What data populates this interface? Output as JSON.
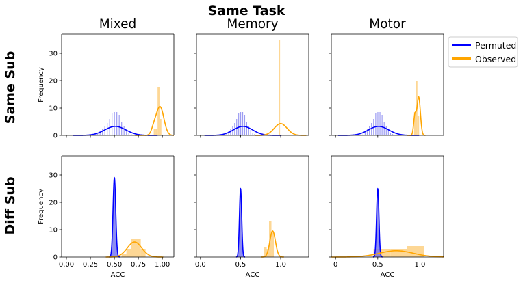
{
  "figure": {
    "suptitle": "Same Task",
    "row_labels": [
      "Same Sub",
      "Diff Sub"
    ],
    "col_titles": [
      "Mixed",
      "Memory",
      "Motor"
    ]
  },
  "legend": {
    "placement": "right, outside top",
    "items": [
      {
        "label": "Permuted",
        "color": "#0000ff"
      },
      {
        "label": "Observed",
        "color": "#ffa500"
      }
    ]
  },
  "colors": {
    "permuted": "#0000ff",
    "permuted_hist": "#8b8bf0",
    "observed": "#ffa500",
    "observed_hist": "#fdd38a"
  },
  "chart_data": [
    {
      "type": "histogram",
      "row": "Same Sub",
      "col": "Mixed",
      "title": "Mixed",
      "ylabel": "Frequency",
      "xlabel": "",
      "ylim": [
        0,
        37
      ],
      "yticks": [
        0,
        10,
        20,
        30
      ],
      "xlim": [
        -0.05,
        1.12
      ],
      "xticks": [
        0.0,
        0.25,
        0.5,
        0.75,
        1.0
      ],
      "xtick_labels": [],
      "ytick_labels": [
        "0",
        "10",
        "20",
        "30"
      ],
      "series": [
        {
          "name": "Permuted",
          "bins": [
            0.3,
            0.325,
            0.35,
            0.375,
            0.4,
            0.425,
            0.45,
            0.475,
            0.5,
            0.525,
            0.55,
            0.575,
            0.6,
            0.625,
            0.65,
            0.675,
            0.7
          ],
          "values": [
            0.3,
            0.5,
            1.5,
            2.5,
            3.5,
            4.5,
            6,
            8,
            8.5,
            8.5,
            7.5,
            5,
            3.5,
            2,
            1,
            0.5,
            0.2
          ],
          "kde": {
            "mean": 0.51,
            "sd": 0.11,
            "peak": 3.3
          }
        },
        {
          "name": "Observed",
          "bins": [
            0.88,
            0.9,
            0.92,
            0.94,
            0.96,
            0.98,
            1.0
          ],
          "values": [
            0,
            0,
            2.5,
            2.5,
            17.5,
            6,
            0
          ],
          "kde": {
            "mean": 0.975,
            "sd": 0.04,
            "peak": 10.5,
            "shoulder": {
              "mean": 0.91,
              "sd": 0.025,
              "peak": 2
            }
          }
        }
      ]
    },
    {
      "type": "histogram",
      "row": "Same Sub",
      "col": "Memory",
      "title": "Memory",
      "ylabel": "",
      "xlabel": "",
      "ylim": [
        0,
        37
      ],
      "yticks": [
        0,
        10,
        20,
        30
      ],
      "xlim": [
        -0.05,
        1.35
      ],
      "xticks": [
        0.0,
        0.5,
        1.0
      ],
      "xtick_labels": [],
      "ytick_labels": [],
      "series": [
        {
          "name": "Permuted",
          "bins": [
            0.3,
            0.325,
            0.35,
            0.375,
            0.4,
            0.425,
            0.45,
            0.475,
            0.5,
            0.525,
            0.55,
            0.575,
            0.6,
            0.625,
            0.65,
            0.675,
            0.7
          ],
          "values": [
            0.3,
            0.5,
            1.5,
            2.5,
            3.5,
            4.5,
            6,
            8,
            8.5,
            8.5,
            7.5,
            5,
            3.5,
            2,
            1,
            0.5,
            0.2
          ],
          "kde": {
            "mean": 0.53,
            "sd": 0.12,
            "peak": 3.3
          }
        },
        {
          "name": "Observed",
          "bins": [
            0.985
          ],
          "values": [
            35
          ],
          "kde": {
            "mean": 1.0,
            "sd": 0.08,
            "peak": 4.3
          }
        }
      ]
    },
    {
      "type": "histogram",
      "row": "Same Sub",
      "col": "Motor",
      "title": "Motor",
      "ylabel": "",
      "xlabel": "",
      "ylim": [
        0,
        37
      ],
      "yticks": [
        0,
        10,
        20,
        30
      ],
      "xlim": [
        -0.05,
        1.28
      ],
      "xticks": [
        0.0,
        0.5,
        1.0
      ],
      "xtick_labels": [],
      "ytick_labels": [],
      "series": [
        {
          "name": "Permuted",
          "bins": [
            0.3,
            0.325,
            0.35,
            0.375,
            0.4,
            0.425,
            0.45,
            0.475,
            0.5,
            0.525,
            0.55,
            0.575,
            0.6,
            0.625,
            0.65,
            0.675,
            0.7
          ],
          "values": [
            0.3,
            0.5,
            1.5,
            2.5,
            3.5,
            4.5,
            6,
            8,
            8.5,
            8.5,
            7.5,
            5,
            3.5,
            2,
            1,
            0.5,
            0.2
          ],
          "kde": {
            "mean": 0.51,
            "sd": 0.12,
            "peak": 3.3
          }
        },
        {
          "name": "Observed",
          "bins": [
            0.92,
            0.94,
            0.96,
            0.98,
            1.0
          ],
          "values": [
            0,
            8.5,
            20,
            7,
            0
          ],
          "kde": {
            "mean": 0.985,
            "sd": 0.02,
            "peak": 14,
            "shoulder": {
              "mean": 0.94,
              "sd": 0.015,
              "peak": 7
            }
          }
        }
      ]
    },
    {
      "type": "histogram",
      "row": "Diff Sub",
      "col": "Mixed",
      "title": "",
      "ylabel": "Frequency",
      "xlabel": "ACC",
      "ylim": [
        0,
        37
      ],
      "yticks": [
        0,
        10,
        20,
        30
      ],
      "xlim": [
        -0.05,
        1.12
      ],
      "xticks": [
        0.0,
        0.25,
        0.5,
        0.75,
        1.0
      ],
      "xtick_labels": [
        "0.00",
        "0.25",
        "0.50",
        "0.75",
        "1.00"
      ],
      "ytick_labels": [
        "0",
        "10",
        "20",
        "30"
      ],
      "series": [
        {
          "name": "Permuted",
          "filled": true,
          "kde": {
            "mean": 0.5,
            "sd": 0.014,
            "peak": 29
          }
        },
        {
          "name": "Observed",
          "bins": [
            0.55,
            0.6,
            0.65,
            0.7,
            0.75,
            0.8,
            0.85
          ],
          "values": [
            0,
            1,
            3,
            6.5,
            6.5,
            3,
            0
          ],
          "kde": {
            "mean": 0.71,
            "sd": 0.075,
            "peak": 5.5
          }
        }
      ]
    },
    {
      "type": "histogram",
      "row": "Diff Sub",
      "col": "Memory",
      "title": "",
      "ylabel": "",
      "xlabel": "ACC",
      "ylim": [
        0,
        37
      ],
      "yticks": [
        0,
        10,
        20,
        30
      ],
      "xlim": [
        -0.05,
        1.35
      ],
      "xticks": [
        0.0,
        0.5,
        1.0
      ],
      "xtick_labels": [
        "0.0",
        "0.5",
        "1.0"
      ],
      "ytick_labels": [],
      "series": [
        {
          "name": "Permuted",
          "filled": true,
          "kde": {
            "mean": 0.5,
            "sd": 0.014,
            "peak": 25
          }
        },
        {
          "name": "Observed",
          "bins": [
            0.78,
            0.81,
            0.84,
            0.87,
            0.9,
            0.93
          ],
          "values": [
            0,
            3.5,
            3,
            13,
            9,
            0
          ],
          "kde": {
            "mean": 0.9,
            "sd": 0.035,
            "peak": 9.5
          }
        }
      ]
    },
    {
      "type": "histogram",
      "row": "Diff Sub",
      "col": "Motor",
      "title": "",
      "ylabel": "",
      "xlabel": "ACC",
      "ylim": [
        0,
        37
      ],
      "yticks": [
        0,
        10,
        20,
        30
      ],
      "xlim": [
        -0.05,
        1.28
      ],
      "xticks": [
        0.0,
        0.5,
        1.0
      ],
      "xtick_labels": [
        "0",
        "0.5",
        "1.0"
      ],
      "ytick_labels": [],
      "series": [
        {
          "name": "Permuted",
          "filled": true,
          "kde": {
            "mean": 0.5,
            "sd": 0.014,
            "peak": 25
          }
        },
        {
          "name": "Observed",
          "bins": [
            0.35,
            0.55,
            0.75,
            0.95
          ],
          "values": [
            0,
            3,
            3,
            4
          ],
          "kde": {
            "mean": 0.72,
            "sd": 0.2,
            "peak": 2.3
          }
        }
      ]
    }
  ]
}
